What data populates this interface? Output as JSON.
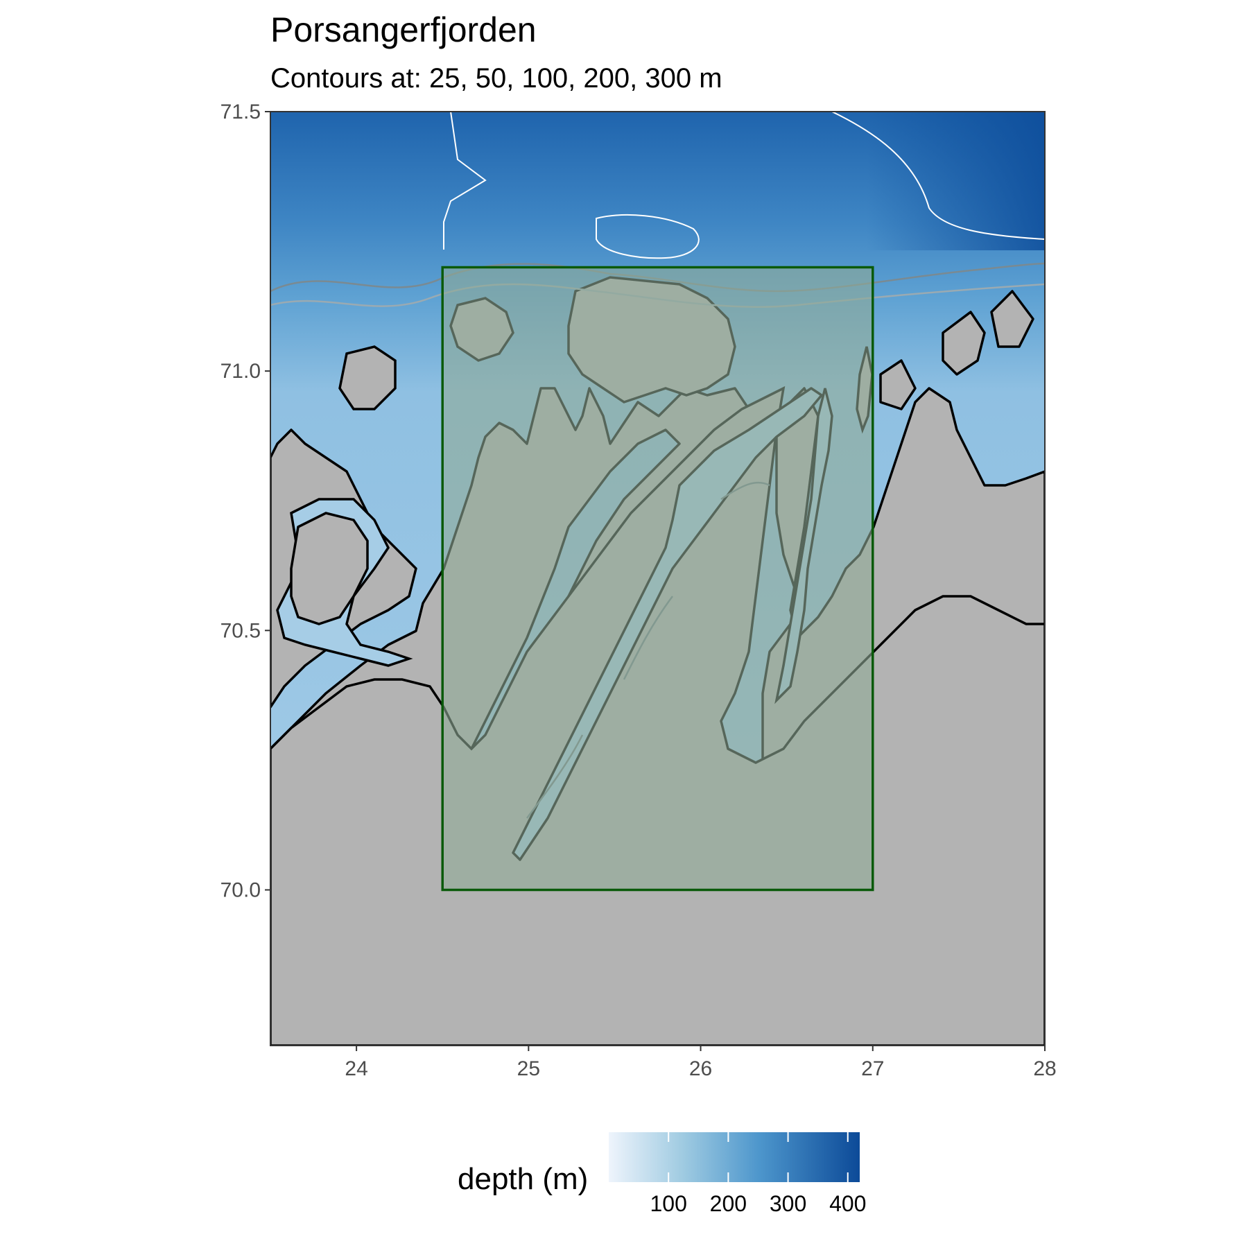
{
  "title": "Porsangerfjorden",
  "subtitle": "Contours at: 25, 50, 100, 200, 300 m",
  "colors": {
    "land": "#b3b3b3",
    "box_fill": "#8faa96",
    "box_stroke": "#0a5a0a",
    "deep_sea": "#0c4c9a",
    "mid_sea": "#4f98ce",
    "shallow_sea": "#eef4fc",
    "coastline": "#000000"
  },
  "chart_data": {
    "type": "map",
    "xlim": [
      23.5,
      28
    ],
    "ylim": [
      69.7,
      71.5
    ],
    "x_ticks": [
      24,
      25,
      26,
      27,
      28
    ],
    "x_tick_labels": [
      "24",
      "25",
      "26",
      "27",
      "28"
    ],
    "y_ticks": [
      70.0,
      70.5,
      71.0,
      71.5
    ],
    "y_tick_labels": [
      "70.0",
      "70.5",
      "71.0",
      "71.5"
    ],
    "highlight_box": {
      "lon": [
        24.5,
        27
      ],
      "lat": [
        70.0,
        71.2
      ]
    },
    "contour_depths_m": [
      25,
      50,
      100,
      200,
      300
    ],
    "legend": {
      "title": "depth (m)",
      "position": "bottom",
      "range": [
        0,
        420
      ],
      "ticks": [
        100,
        200,
        300,
        400
      ],
      "tick_labels": [
        "100",
        "200",
        "300",
        "400"
      ]
    }
  }
}
